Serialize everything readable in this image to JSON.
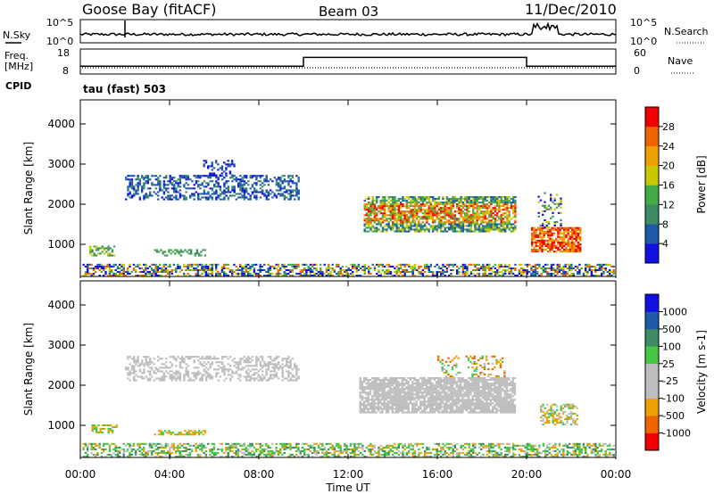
{
  "header": {
    "station": "Goose Bay (fitACF)",
    "beam": "Beam 03",
    "date": "11/Dec/2010"
  },
  "noise_panel": {
    "left_label": "N.Sky",
    "right_label": "N.Search",
    "left_ticks": [
      "10^5",
      "10^0"
    ],
    "right_ticks": [
      "10^5",
      "10^0"
    ]
  },
  "freq_panel": {
    "left_label_line1": "Freq.",
    "left_label_line2": "[MHz]",
    "right_label": "Nave",
    "left_ticks": [
      "18",
      "8"
    ],
    "right_ticks": [
      "60",
      "0"
    ]
  },
  "cpid": {
    "label": "CPID",
    "value": "tau (fast) 503"
  },
  "colors": {
    "power_scale": [
      "#1010e0",
      "#1e5aa8",
      "#3c8c64",
      "#46aa46",
      "#c8c800",
      "#f0a000",
      "#f06400",
      "#f00000"
    ],
    "velocity_scale": [
      "#f00000",
      "#f06400",
      "#f0a000",
      "#bebebe",
      "#bebebe",
      "#46c846",
      "#3c8c64",
      "#1e5aa8",
      "#1010e0"
    ]
  },
  "chart_data": [
    {
      "type": "heatmap",
      "name": "power",
      "ylabel": "Slant Range [km]",
      "ylim": [
        200,
        4600
      ],
      "yticks": [
        "1000",
        "2000",
        "3000",
        "4000"
      ],
      "colorbar_label": "Power [dB]",
      "colorbar_ticks": [
        "4",
        "8",
        "12",
        "16",
        "20",
        "24",
        "28"
      ],
      "colorbar_range": [
        0,
        32
      ]
    },
    {
      "type": "heatmap",
      "name": "velocity",
      "ylabel": "Slant Range [km]",
      "ylim": [
        200,
        4600
      ],
      "yticks": [
        "1000",
        "2000",
        "3000",
        "4000"
      ],
      "colorbar_label": "Velocity [m s-1]",
      "colorbar_ticks": [
        "-1000",
        "-500",
        "-100",
        "-25",
        "25",
        "100",
        "500",
        "1000"
      ],
      "colorbar_range": [
        -1500,
        1500
      ]
    }
  ],
  "time_axis": {
    "xlabel": "Time UT",
    "ticks": [
      "00:00",
      "04:00",
      "08:00",
      "12:00",
      "16:00",
      "20:00",
      "00:00"
    ],
    "xlim_hours": [
      0,
      24
    ]
  }
}
